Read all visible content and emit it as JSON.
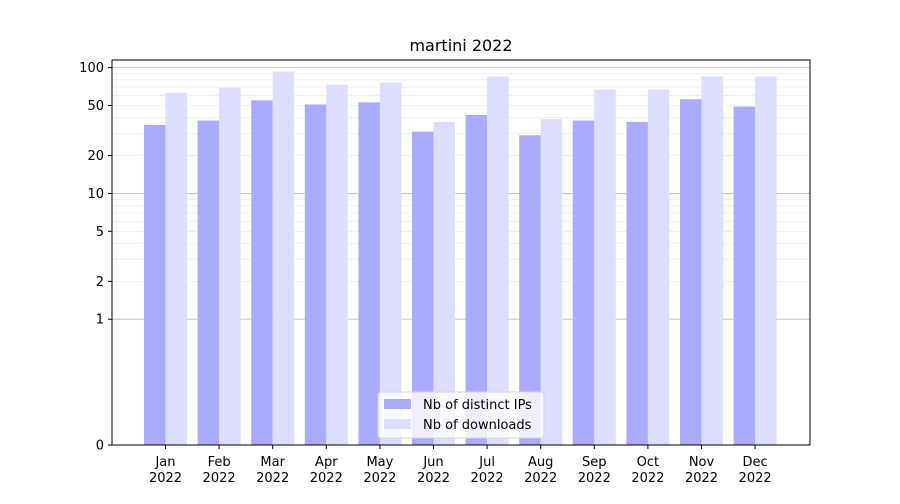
{
  "chart_data": {
    "type": "bar",
    "title": "martini 2022",
    "xlabel": "",
    "ylabel": "",
    "yscale": "symlog",
    "ylim": [
      0,
      115
    ],
    "yticks": [
      0,
      1,
      2,
      5,
      10,
      20,
      50,
      100
    ],
    "ytick_labels": [
      "0",
      "1",
      "2",
      "5",
      "10",
      "20",
      "50",
      "100"
    ],
    "grid": "horizontal",
    "legend_position": "bottom-center",
    "categories": [
      [
        "Jan",
        "2022"
      ],
      [
        "Feb",
        "2022"
      ],
      [
        "Mar",
        "2022"
      ],
      [
        "Apr",
        "2022"
      ],
      [
        "May",
        "2022"
      ],
      [
        "Jun",
        "2022"
      ],
      [
        "Jul",
        "2022"
      ],
      [
        "Aug",
        "2022"
      ],
      [
        "Sep",
        "2022"
      ],
      [
        "Oct",
        "2022"
      ],
      [
        "Nov",
        "2022"
      ],
      [
        "Dec",
        "2022"
      ]
    ],
    "series": [
      {
        "name": "Nb of distinct IPs",
        "color": "#aaaaff",
        "values": [
          35,
          38,
          55,
          51,
          53,
          31,
          42,
          29,
          38,
          37,
          56,
          49
        ]
      },
      {
        "name": "Nb of downloads",
        "color": "#ddddff",
        "values": [
          63,
          69,
          93,
          73,
          76,
          37,
          85,
          39,
          67,
          67,
          85,
          85
        ]
      }
    ]
  }
}
